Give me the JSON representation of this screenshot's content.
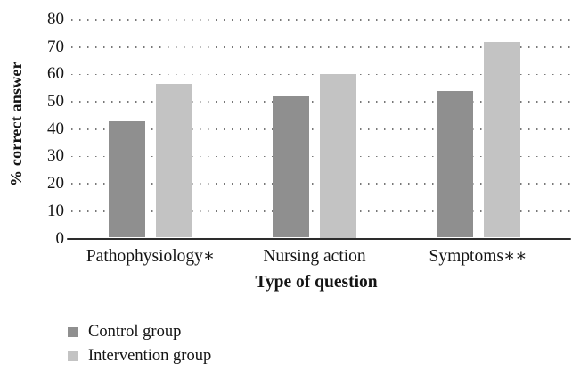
{
  "chart_data": {
    "type": "bar",
    "title": "",
    "xlabel": "Type of question",
    "ylabel": "% correct answer",
    "categories": [
      "Pathophysiology∗",
      "Nursing action",
      "Symptoms∗∗"
    ],
    "series": [
      {
        "name": "Control group",
        "color": "#8f8f8f",
        "values": [
          43,
          52,
          54
        ]
      },
      {
        "name": "Intervention group",
        "color": "#c3c3c3",
        "values": [
          56.5,
          60,
          72
        ]
      }
    ],
    "ylim": [
      0,
      80
    ],
    "ytick_step": 10,
    "yticks": [
      0,
      10,
      20,
      30,
      40,
      50,
      60,
      70,
      80
    ],
    "grid": "dotted-horizontal",
    "legend_position": "bottom-left"
  },
  "colors": {
    "background": "#ffffff",
    "text": "#141414",
    "axis_line": "#2d2d2d",
    "grid_dot": "#787878"
  }
}
